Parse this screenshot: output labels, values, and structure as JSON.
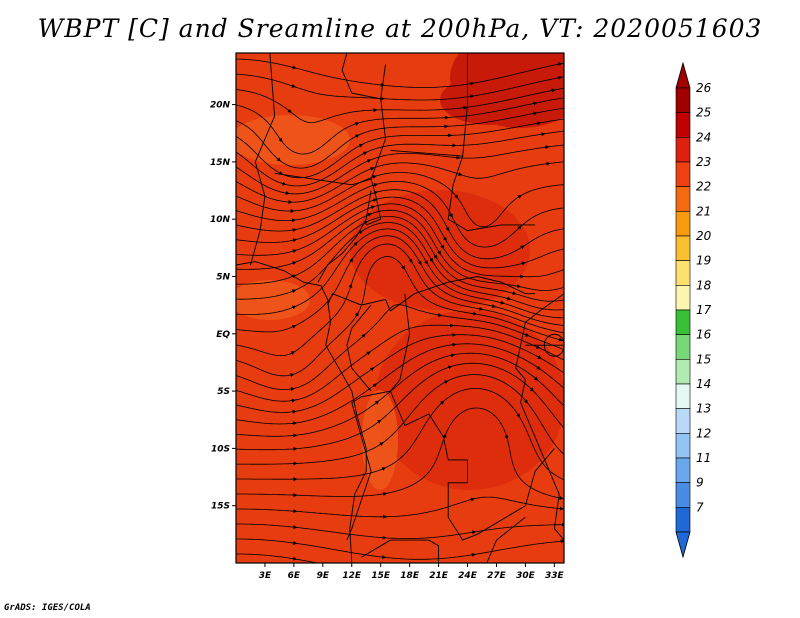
{
  "title": "WBPT [C] and Sreamline at 200hPa, VT: 2020051603",
  "credit": "GrADS: IGES/COLA",
  "colors": {
    "field_base": "#e73c10",
    "field_light": "#f05a1c",
    "field_dark": "#c81a08",
    "streamline": "#000000",
    "border": "#000000"
  },
  "map": {
    "lon_range": [
      0,
      34
    ],
    "lat_range": [
      -20,
      24.5
    ],
    "lon_ticks": [
      {
        "value": 3,
        "label": "3E"
      },
      {
        "value": 6,
        "label": "6E"
      },
      {
        "value": 9,
        "label": "9E"
      },
      {
        "value": 12,
        "label": "12E"
      },
      {
        "value": 15,
        "label": "15E"
      },
      {
        "value": 18,
        "label": "18E"
      },
      {
        "value": 21,
        "label": "21E"
      },
      {
        "value": 24,
        "label": "24E"
      },
      {
        "value": 27,
        "label": "27E"
      },
      {
        "value": 30,
        "label": "30E"
      },
      {
        "value": 33,
        "label": "33E"
      }
    ],
    "lat_ticks": [
      {
        "value": 20,
        "label": "20N"
      },
      {
        "value": 15,
        "label": "15N"
      },
      {
        "value": 10,
        "label": "10N"
      },
      {
        "value": 5,
        "label": "5N"
      },
      {
        "value": 0,
        "label": "EQ"
      },
      {
        "value": -5,
        "label": "5S"
      },
      {
        "value": -10,
        "label": "10S"
      },
      {
        "value": -15,
        "label": "15S"
      }
    ]
  },
  "colorbar": {
    "levels": [
      {
        "label": "26",
        "color": "#a00000"
      },
      {
        "label": "25",
        "color": "#c00000"
      },
      {
        "label": "24",
        "color": "#dd2010"
      },
      {
        "label": "23",
        "color": "#ee4010"
      },
      {
        "label": "22",
        "color": "#f46a10"
      },
      {
        "label": "21",
        "color": "#f89a10"
      },
      {
        "label": "20",
        "color": "#fabf30"
      },
      {
        "label": "19",
        "color": "#fde070"
      },
      {
        "label": "18",
        "color": "#fdf5b0"
      },
      {
        "label": "17",
        "color": "#38c038"
      },
      {
        "label": "16",
        "color": "#78d878"
      },
      {
        "label": "15",
        "color": "#b0ecb0"
      },
      {
        "label": "14",
        "color": "#e4f8f4"
      },
      {
        "label": "13",
        "color": "#b8daf8"
      },
      {
        "label": "12",
        "color": "#94c4f4"
      },
      {
        "label": "11",
        "color": "#6aa8ee"
      },
      {
        "label": "9",
        "color": "#4a8ce4"
      },
      {
        "label": "7",
        "color": "#2068d8"
      }
    ]
  }
}
